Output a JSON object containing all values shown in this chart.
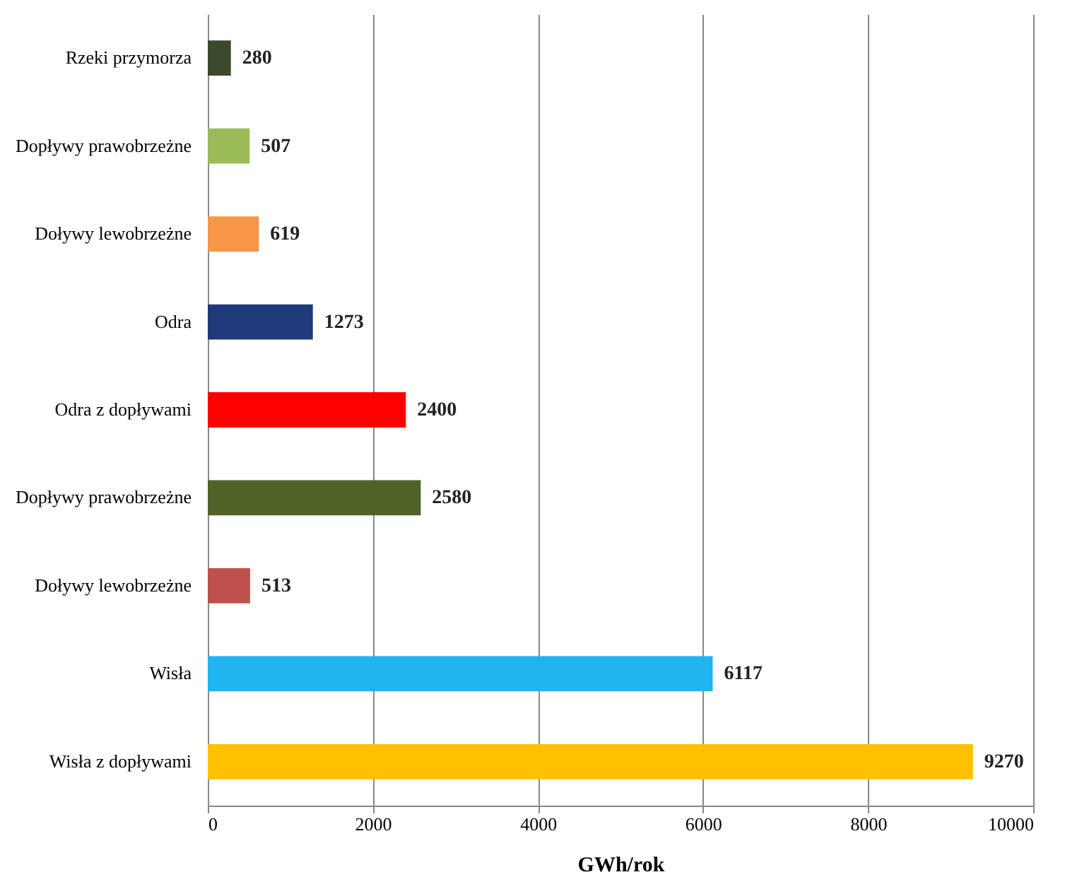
{
  "chart_data": {
    "type": "bar",
    "orientation": "horizontal",
    "xlabel": "GWh/rok",
    "categories": [
      "Rzeki przymorza",
      "Dopływy prawobrzeżne",
      "Doływy lewobrzeżne",
      "Odra",
      "Odra z dopływami",
      "Dopływy prawobrzeżne",
      "Doływy lewobrzeżne",
      "Wisła",
      "Wisła z dopływami"
    ],
    "values": [
      280,
      507,
      619,
      1273,
      2400,
      2580,
      513,
      6117,
      9270
    ],
    "colors": [
      "#3b4a2c",
      "#9bbb59",
      "#f79646",
      "#1f3a7a",
      "#ff0000",
      "#4f6228",
      "#c0504d",
      "#1fb4f0",
      "#ffc000"
    ],
    "xlim": [
      0,
      10000
    ],
    "xticks": [
      0,
      2000,
      4000,
      6000,
      8000,
      10000
    ],
    "grid": "x",
    "data_labels": true
  }
}
